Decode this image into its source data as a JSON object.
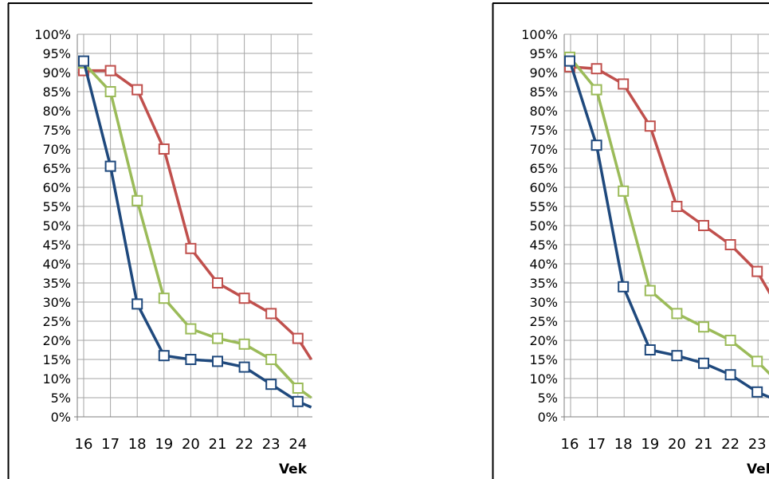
{
  "chart_data": [
    {
      "type": "line",
      "title": "",
      "xlabel": "Vek",
      "ylabel": "",
      "ylim": [
        0,
        100
      ],
      "yticks": [
        "0%",
        "5%",
        "10%",
        "15%",
        "20%",
        "25%",
        "30%",
        "35%",
        "40%",
        "45%",
        "50%",
        "55%",
        "60%",
        "65%",
        "70%",
        "75%",
        "80%",
        "85%",
        "90%",
        "95%",
        "100%"
      ],
      "x": [
        16,
        17,
        18,
        19,
        20,
        21,
        22,
        23,
        24
      ],
      "xlim": [
        16,
        24.5
      ],
      "grid": true,
      "series": [
        {
          "color": "#c0504d",
          "values": [
            90.5,
            90.5,
            85.5,
            70,
            44,
            35,
            31,
            27,
            20.5
          ],
          "edge": 15
        },
        {
          "color": "#9bbb59",
          "values": [
            92.5,
            85,
            56.5,
            31,
            23,
            20.5,
            19,
            15,
            7.5
          ],
          "edge": 5
        },
        {
          "color": "#1f497d",
          "values": [
            93,
            65.5,
            29.5,
            16,
            15,
            14.5,
            13,
            8.5,
            4
          ],
          "edge": 2.5
        }
      ]
    },
    {
      "type": "line",
      "title": "",
      "xlabel": "Vek",
      "ylabel": "",
      "ylim": [
        0,
        100
      ],
      "yticks": [
        "0%",
        "5%",
        "10%",
        "15%",
        "20%",
        "25%",
        "30%",
        "35%",
        "40%",
        "45%",
        "50%",
        "55%",
        "60%",
        "65%",
        "70%",
        "75%",
        "80%",
        "85%",
        "90%",
        "95%",
        "100%"
      ],
      "x": [
        16,
        17,
        18,
        19,
        20,
        21,
        22,
        23
      ],
      "xlim": [
        16,
        24.5
      ],
      "grid": true,
      "series": [
        {
          "color": "#c0504d",
          "values": [
            91.5,
            91,
            87,
            76,
            55,
            50,
            45,
            38
          ],
          "edge": 32
        },
        {
          "color": "#9bbb59",
          "values": [
            94,
            85.5,
            59,
            33,
            27,
            23.5,
            20,
            14.5
          ],
          "edge": 11
        },
        {
          "color": "#1f497d",
          "values": [
            93,
            71,
            34,
            17.5,
            16,
            14,
            11,
            6.5
          ],
          "edge": 5
        }
      ]
    }
  ]
}
